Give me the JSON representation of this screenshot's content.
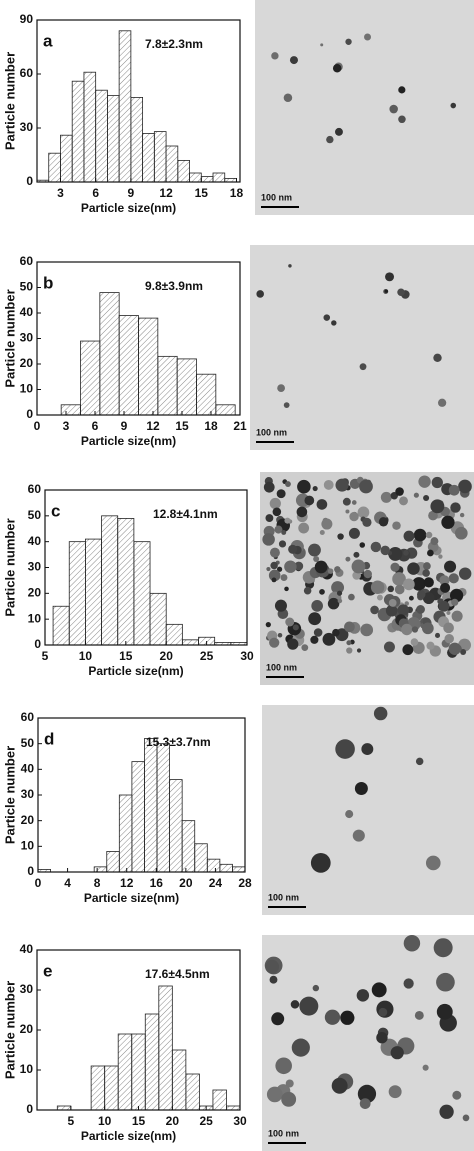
{
  "chart_data": [
    {
      "type": "histogram",
      "panel_label": "a",
      "annotation": "7.8±2.3nm",
      "xlabel": "Particle size(nm)",
      "ylabel": "Particle number",
      "bins": [
        1,
        2,
        3,
        4,
        5,
        6,
        7,
        8,
        9,
        10,
        11,
        12,
        13,
        14,
        15,
        16,
        17,
        18
      ],
      "values": [
        1,
        16,
        26,
        56,
        61,
        51,
        48,
        84,
        47,
        27,
        28,
        20,
        12,
        5,
        3,
        5,
        2
      ],
      "xlim": [
        1,
        18.3
      ],
      "ylim": [
        0,
        90
      ],
      "xticks": [
        3,
        6,
        9,
        12,
        15,
        18
      ],
      "yticks": [
        0,
        30,
        60,
        90
      ],
      "color": "#e6e6e6"
    },
    {
      "type": "histogram",
      "panel_label": "b",
      "annotation": "9.8±3.9nm",
      "xlabel": "Particle size(nm)",
      "ylabel": "Particle number",
      "bins": [
        2.5,
        4.5,
        6.5,
        8.5,
        10.5,
        12.5,
        14.5,
        16.5,
        18.5,
        20.5
      ],
      "values": [
        4,
        29,
        48,
        39,
        38,
        23,
        22,
        16,
        4
      ],
      "xlim": [
        0,
        21
      ],
      "ylim": [
        0,
        60
      ],
      "xticks": [
        0,
        3,
        6,
        9,
        12,
        15,
        18,
        21
      ],
      "yticks": [
        0,
        10,
        20,
        30,
        40,
        50,
        60
      ],
      "color": "#e6e6e6"
    },
    {
      "type": "histogram",
      "panel_label": "c",
      "annotation": "12.8±4.1nm",
      "xlabel": "Particle size(nm)",
      "ylabel": "Particle number",
      "bins": [
        6,
        8,
        10,
        12,
        14,
        16,
        18,
        20,
        22,
        24,
        26,
        28,
        30
      ],
      "values": [
        15,
        40,
        41,
        50,
        49,
        40,
        20,
        8,
        2,
        3,
        1,
        1
      ],
      "xlim": [
        5,
        30
      ],
      "ylim": [
        0,
        60
      ],
      "xticks": [
        5,
        10,
        15,
        20,
        25,
        30
      ],
      "yticks": [
        0,
        10,
        20,
        30,
        40,
        50,
        60
      ],
      "color": "#e6e6e6"
    },
    {
      "type": "histogram",
      "panel_label": "d",
      "annotation": "15.3±3.7nm",
      "xlabel": "Particle size(nm)",
      "ylabel": "Particle number",
      "bins": [
        0,
        1.7,
        7.6,
        9.3,
        11,
        12.7,
        14.4,
        16.1,
        17.8,
        19.5,
        21.2,
        22.9,
        24.6,
        26.3,
        28
      ],
      "values": [
        1,
        0,
        2,
        8,
        30,
        43,
        52,
        50,
        36,
        20,
        11,
        5,
        3,
        2
      ],
      "xlim": [
        0,
        28
      ],
      "ylim": [
        0,
        60
      ],
      "xticks": [
        0,
        4,
        8,
        12,
        16,
        20,
        24,
        28
      ],
      "yticks": [
        0,
        10,
        20,
        30,
        40,
        50,
        60
      ],
      "color": "#e6e6e6"
    },
    {
      "type": "histogram",
      "panel_label": "e",
      "annotation": "17.6±4.5nm",
      "xlabel": "Particle size(nm)",
      "ylabel": "Particle number",
      "bins": [
        3,
        5,
        8,
        10,
        12,
        14,
        16,
        18,
        20,
        22,
        24,
        26,
        28,
        30
      ],
      "values": [
        1,
        0,
        11,
        11,
        19,
        19,
        24,
        31,
        15,
        9,
        1,
        5,
        1
      ],
      "xlim": [
        0,
        30
      ],
      "ylim": [
        0,
        40
      ],
      "xticks": [
        5,
        10,
        15,
        20,
        25,
        30
      ],
      "yticks": [
        0,
        10,
        20,
        30,
        40
      ],
      "color": "#e6e6e6"
    }
  ],
  "images": [
    {
      "scale_bar": "100 nm"
    },
    {
      "scale_bar": "100 nm"
    },
    {
      "scale_bar": "100 nm"
    },
    {
      "scale_bar": "100 nm"
    },
    {
      "scale_bar": "100 nm"
    }
  ]
}
